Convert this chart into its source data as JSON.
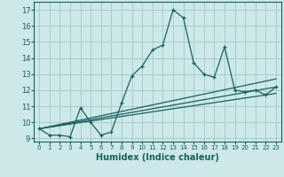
{
  "title": "",
  "xlabel": "Humidex (Indice chaleur)",
  "ylabel": "",
  "xlim": [
    -0.5,
    23.5
  ],
  "ylim": [
    8.8,
    17.5
  ],
  "xticks": [
    0,
    1,
    2,
    3,
    4,
    5,
    6,
    7,
    8,
    9,
    10,
    11,
    12,
    13,
    14,
    15,
    16,
    17,
    18,
    19,
    20,
    21,
    22,
    23
  ],
  "yticks": [
    9,
    10,
    11,
    12,
    13,
    14,
    15,
    16,
    17
  ],
  "background_color": "#cce8e8",
  "grid_color": "#aacccc",
  "line_color": "#1a6060",
  "lines": [
    {
      "x": [
        0,
        1,
        2,
        3,
        4,
        5,
        6,
        7,
        8,
        9,
        10,
        11,
        12,
        13,
        14,
        15,
        16,
        17,
        18,
        19,
        20,
        21,
        22,
        23
      ],
      "y": [
        9.6,
        9.2,
        9.2,
        9.1,
        10.9,
        10.0,
        9.2,
        9.4,
        11.2,
        12.9,
        13.5,
        14.5,
        14.8,
        17.0,
        16.5,
        13.7,
        13.0,
        12.8,
        14.7,
        12.0,
        11.9,
        12.0,
        11.7,
        12.2
      ],
      "marker": "+"
    },
    {
      "x": [
        0,
        23
      ],
      "y": [
        9.6,
        12.7
      ],
      "marker": null
    },
    {
      "x": [
        0,
        23
      ],
      "y": [
        9.6,
        12.2
      ],
      "marker": null
    },
    {
      "x": [
        0,
        23
      ],
      "y": [
        9.6,
        11.8
      ],
      "marker": null
    }
  ]
}
